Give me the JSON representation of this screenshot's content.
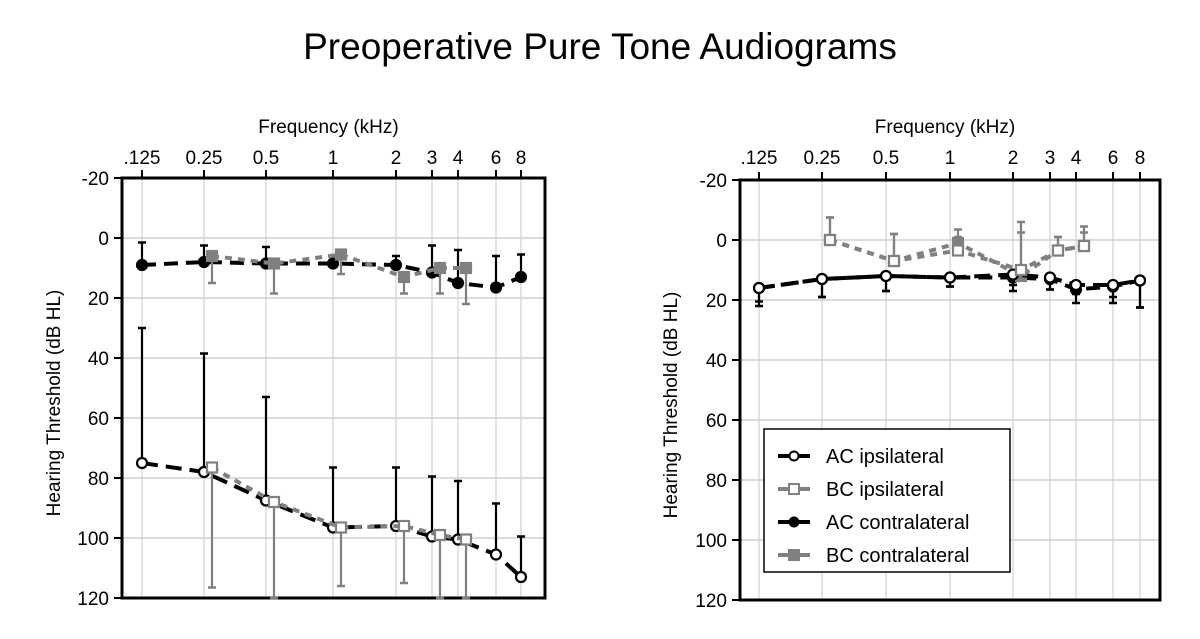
{
  "title": "Preoperative Pure Tone Audiograms",
  "colors": {
    "ac": "#000000",
    "bc": "#808080",
    "grid": "#d0d0d0"
  },
  "legend": {
    "placement": "bottom-left of right panel",
    "items": [
      {
        "label": "AC ipsilateral",
        "series": "ac_ipsi"
      },
      {
        "label": "BC ipsilateral",
        "series": "bc_ipsi"
      },
      {
        "label": "AC contralateral",
        "series": "ac_contra"
      },
      {
        "label": "BC contralateral",
        "series": "bc_contra"
      }
    ]
  },
  "chart_data": [
    {
      "type": "line",
      "panel": "left",
      "xlabel": "Frequency (kHz)",
      "ylabel": "Hearing Threshold (dB  HL)",
      "x_tick_labels": [
        ".125",
        "0.25",
        "0.5",
        "1",
        "2",
        "3",
        "4",
        "6",
        "8"
      ],
      "x_values": [
        0.125,
        0.25,
        0.5,
        1,
        2,
        3,
        4,
        6,
        8
      ],
      "x_scale": "log",
      "y_ticks": [
        -20,
        0,
        20,
        40,
        60,
        80,
        100,
        120
      ],
      "ylim": [
        -20,
        120
      ],
      "y_inverted": true,
      "grid": true,
      "series": [
        {
          "name": "AC ipsilateral",
          "key": "ac_ipsi",
          "x": [
            0.125,
            0.25,
            0.5,
            1,
            2,
            3,
            4,
            6,
            8
          ],
          "values": [
            75,
            78,
            87.5,
            96.5,
            96,
            99.5,
            100.5,
            105.5,
            113
          ],
          "err_to": [
            30,
            38.5,
            53,
            76.5,
            76.5,
            79.5,
            81,
            88.5,
            99.5
          ]
        },
        {
          "name": "BC ipsilateral",
          "key": "bc_ipsi",
          "x": [
            0.25,
            0.5,
            1,
            2,
            3,
            4
          ],
          "values": [
            76.5,
            88,
            96.5,
            96,
            99,
            100.5
          ],
          "err_to": [
            116.5,
            120,
            116,
            115,
            120,
            120
          ]
        },
        {
          "name": "AC contralateral",
          "key": "ac_contra",
          "x": [
            0.125,
            0.25,
            0.5,
            1,
            2,
            3,
            4,
            6,
            8
          ],
          "values": [
            9,
            8,
            8.5,
            8.5,
            9,
            11.5,
            15,
            16.5,
            13
          ],
          "err_to": [
            1.5,
            2.5,
            3,
            6,
            6,
            2.5,
            4,
            6,
            5.5
          ]
        },
        {
          "name": "BC contralateral",
          "key": "bc_contra",
          "x": [
            0.25,
            0.5,
            1,
            2,
            3,
            4
          ],
          "values": [
            6,
            8.5,
            5.5,
            13,
            10,
            10
          ],
          "err_to": [
            15,
            18.5,
            12,
            18.5,
            18.5,
            22
          ]
        }
      ]
    },
    {
      "type": "line",
      "panel": "right",
      "xlabel": "Frequency (kHz)",
      "ylabel": "Hearing Threshold (dB  HL)",
      "x_tick_labels": [
        ".125",
        "0.25",
        "0.5",
        "1",
        "2",
        "3",
        "4",
        "6",
        "8"
      ],
      "x_values": [
        0.125,
        0.25,
        0.5,
        1,
        2,
        3,
        4,
        6,
        8
      ],
      "x_scale": "log",
      "y_ticks": [
        -20,
        0,
        20,
        40,
        60,
        80,
        100,
        120
      ],
      "ylim": [
        -20,
        120
      ],
      "y_inverted": true,
      "grid": true,
      "series": [
        {
          "name": "AC contralateral",
          "key": "ac_contra",
          "x": [
            0.125,
            0.25,
            0.5,
            1,
            2,
            3,
            4,
            6,
            8
          ],
          "values": [
            16,
            13,
            12,
            12.5,
            12.5,
            13,
            16.5,
            15.5,
            13.5
          ],
          "err_to": [
            20.5,
            19,
            17,
            15.5,
            15,
            16.5,
            18,
            19,
            22.5
          ]
        },
        {
          "name": "BC contralateral",
          "key": "bc_contra",
          "x": [
            0.25,
            0.5,
            1,
            2,
            3,
            4
          ],
          "values": [
            0,
            7,
            1,
            12,
            3.5,
            2
          ],
          "err_to": [
            -7.5,
            -2,
            -3.5,
            -2.5,
            -1,
            -4.5
          ]
        },
        {
          "name": "AC ipsilateral",
          "key": "ac_ipsi",
          "x": [
            0.125,
            0.25,
            0.5,
            1,
            2,
            3,
            4,
            6,
            8
          ],
          "values": [
            16,
            13,
            12,
            12.5,
            11.5,
            12.5,
            15,
            15,
            13.5
          ],
          "err_to": [
            22,
            19,
            17,
            15.5,
            17,
            16.5,
            21,
            21,
            22.5
          ]
        },
        {
          "name": "BC ipsilateral",
          "key": "bc_ipsi",
          "x": [
            0.25,
            0.5,
            1,
            2,
            3,
            4
          ],
          "values": [
            0,
            7,
            3.5,
            10,
            3.5,
            2
          ],
          "err_to": [
            -7.5,
            -2,
            -1,
            -6,
            -1,
            -2.5
          ]
        }
      ]
    }
  ]
}
